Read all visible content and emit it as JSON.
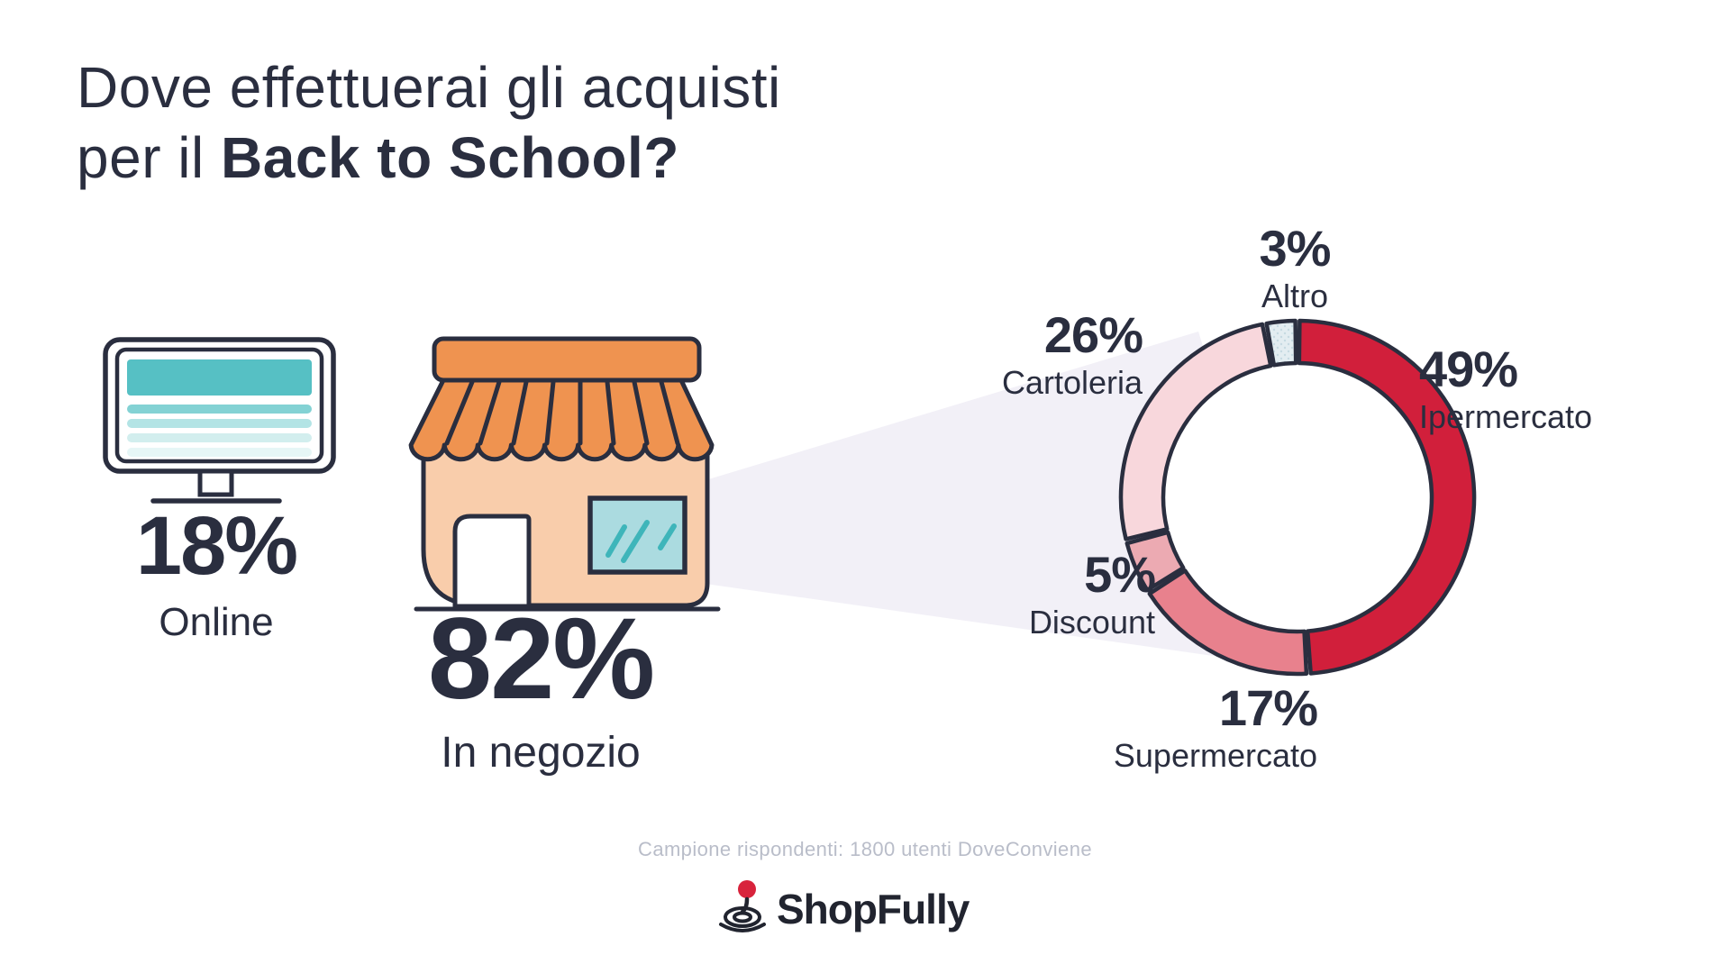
{
  "title": {
    "line1": "Dove effettuerai gli acquisti",
    "line2_regular": "per il ",
    "line2_bold": "Back to School?"
  },
  "stats": {
    "online": {
      "value": "18%",
      "label": "Online"
    },
    "in_store": {
      "value": "82%",
      "label": "In negozio"
    }
  },
  "chart_data": {
    "type": "pie",
    "variant": "donut",
    "title": "Dove effettuerai gli acquisti per il Back to School?",
    "units": "percent",
    "direction": "clockwise",
    "start_angle_deg": 0,
    "hole": true,
    "legend_position": "around",
    "segments": [
      {
        "label": "Ipermercato",
        "value": 49,
        "display": "49%",
        "color": "#d11f3b"
      },
      {
        "label": "Supermercato",
        "value": 17,
        "display": "17%",
        "color": "#e8818d"
      },
      {
        "label": "Discount",
        "value": 5,
        "display": "5%",
        "color": "#ecaab2"
      },
      {
        "label": "Cartoleria",
        "value": 26,
        "display": "26%",
        "color": "#f8d7dc"
      },
      {
        "label": "Altro",
        "value": 3,
        "display": "3%",
        "color": "#e3edf1",
        "dotted": true
      }
    ]
  },
  "footer": {
    "caption": "Campione rispondenti: 1800 utenti DoveConviene",
    "brand": "ShopFully"
  },
  "colors": {
    "navy": "#2a2e3f",
    "red": "#d11f3b",
    "beam": "#f2f0f7",
    "awning_orange": "#ef9350",
    "store_peach": "#f9cdab",
    "screen_teal": "#56c0c4",
    "window_teal": "#abdbe0",
    "window_slash_teal": "#3eb5ba",
    "logo_red": "#d8233c",
    "caption_gray": "#b9bdc9",
    "altro_dot": "#c6dae2"
  }
}
